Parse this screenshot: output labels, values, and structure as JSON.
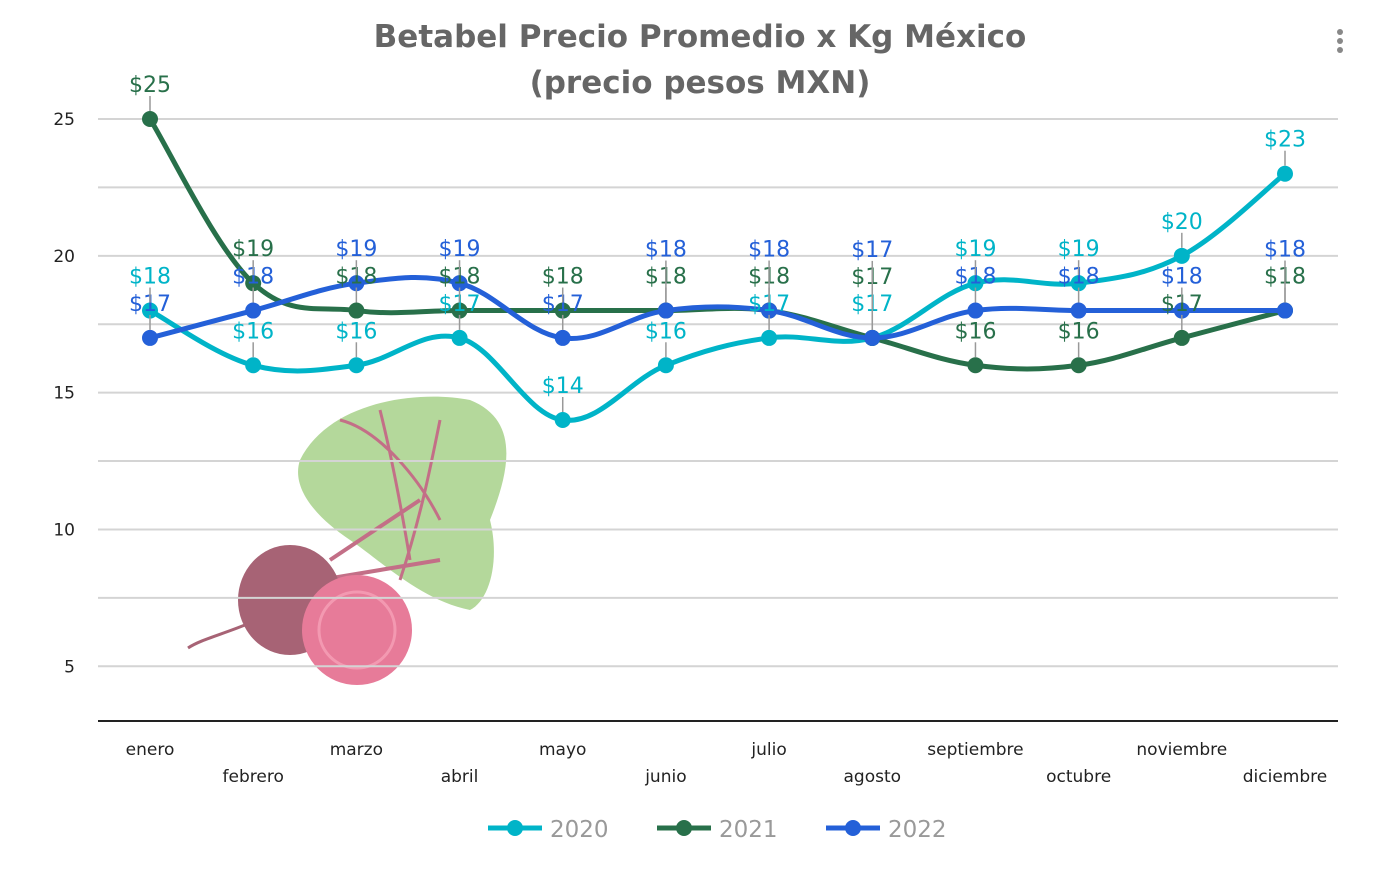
{
  "chart_data": {
    "type": "line",
    "title_line1": "Betabel Precio Promedio x Kg México",
    "title_line2": "(precio pesos MXN)",
    "categories": [
      "enero",
      "febrero",
      "marzo",
      "abril",
      "mayo",
      "junio",
      "julio",
      "agosto",
      "septiembre",
      "octubre",
      "noviembre",
      "diciembre"
    ],
    "series": [
      {
        "name": "2020",
        "color": "#00b4c8",
        "values": [
          18,
          16,
          16,
          17,
          14,
          16,
          17,
          17,
          19,
          19,
          20,
          23
        ]
      },
      {
        "name": "2021",
        "color": "#28704a",
        "values": [
          25,
          19,
          18,
          18,
          18,
          18,
          18,
          17,
          16,
          16,
          17,
          18
        ]
      },
      {
        "name": "2022",
        "color": "#2460d8",
        "values": [
          17,
          18,
          19,
          19,
          17,
          18,
          18,
          17,
          18,
          18,
          18,
          18
        ]
      }
    ],
    "yticks": [
      5,
      10,
      15,
      20,
      25
    ],
    "ylim": [
      3,
      25
    ],
    "data_label_prefix": "$",
    "grid": true,
    "smooth": true,
    "legend_position": "bottom"
  },
  "decoration": "beet-image"
}
